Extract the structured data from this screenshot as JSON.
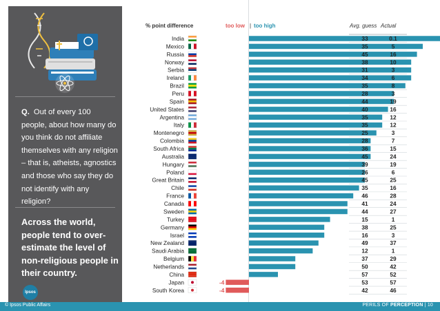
{
  "question": {
    "prefix": "Q.",
    "text": "Out of every 100 people, about how many do you think do not affiliate themselves with any religion – that is, atheists, agnostics and those who say they do not identify with any religion?"
  },
  "takeaway": "Across the world, people tend to over-estimate the level of non-religious people in their country.",
  "logo_text": "Ipsos",
  "footer": {
    "left": "© Ipsos Public Affairs",
    "right_prefix": "PERILS OF ",
    "right_bold": "PERCEPTION",
    "separator": "|",
    "page": "10"
  },
  "colors": {
    "positive": "#2a93b0",
    "negative": "#e05a5a",
    "sidebar": "#58585a",
    "footer": "#2a93b0"
  },
  "chart_data": {
    "type": "bar",
    "header_label": "% point difference",
    "legend_low": "too low",
    "legend_sep": "|",
    "legend_high": "too high",
    "col_avg": "Avg. guess",
    "col_actual": "Actual",
    "xlim": [
      -5,
      35
    ],
    "rows": [
      {
        "country": "India",
        "diff": "+33",
        "value": 33,
        "avg": "33",
        "actual": "0.1",
        "flag": [
          "#ff9933",
          "#ffffff",
          "#138808"
        ]
      },
      {
        "country": "Mexico",
        "diff": "+30",
        "value": 30,
        "avg": "35",
        "actual": "5",
        "flag": [
          "#006847",
          "#ffffff",
          "#ce1126"
        ],
        "vertical": true
      },
      {
        "country": "Russia",
        "diff": "+29",
        "value": 29,
        "avg": "45",
        "actual": "16",
        "flag": [
          "#ffffff",
          "#0039a6",
          "#d52b1e"
        ]
      },
      {
        "country": "Norway",
        "diff": "+28",
        "value": 28,
        "avg": "38",
        "actual": "10",
        "flag": [
          "#ba0c2f",
          "#ffffff",
          "#00205b"
        ]
      },
      {
        "country": "Serbia",
        "diff": "+28",
        "value": 28,
        "avg": "31",
        "actual": "3",
        "flag": [
          "#c6363c",
          "#0c4076",
          "#ffffff"
        ]
      },
      {
        "country": "Ireland",
        "diff": "+28",
        "value": 28,
        "avg": "34",
        "actual": "6",
        "flag": [
          "#169b62",
          "#ffffff",
          "#ff883e"
        ],
        "vertical": true
      },
      {
        "country": "Brazil",
        "diff": "+27",
        "value": 27,
        "avg": "35",
        "actual": "8",
        "flag": [
          "#009c3b",
          "#ffdf00",
          "#009c3b"
        ]
      },
      {
        "country": "Peru",
        "diff": "+25",
        "value": 25,
        "avg": "28",
        "actual": "3",
        "flag": [
          "#d91023",
          "#ffffff",
          "#d91023"
        ],
        "vertical": true
      },
      {
        "country": "Spain",
        "diff": "+25",
        "value": 25,
        "avg": "44",
        "actual": "19",
        "flag": [
          "#aa151b",
          "#f1bf00",
          "#aa151b"
        ]
      },
      {
        "country": "United States",
        "diff": "+24",
        "value": 24,
        "avg": "40",
        "actual": "16",
        "flag": [
          "#b22234",
          "#ffffff",
          "#3c3b6e"
        ]
      },
      {
        "country": "Argentina",
        "diff": "+23",
        "value": 23,
        "avg": "35",
        "actual": "12",
        "flag": [
          "#74acdf",
          "#ffffff",
          "#74acdf"
        ]
      },
      {
        "country": "Italy",
        "diff": "+23",
        "value": 23,
        "avg": "35",
        "actual": "12",
        "flag": [
          "#009246",
          "#ffffff",
          "#ce2b37"
        ],
        "vertical": true
      },
      {
        "country": "Montenegro",
        "diff": "+22",
        "value": 22,
        "avg": "25",
        "actual": "3",
        "flag": [
          "#d3ae3b",
          "#c40308",
          "#d3ae3b"
        ]
      },
      {
        "country": "Colombia",
        "diff": "+21",
        "value": 21,
        "avg": "28",
        "actual": "7",
        "flag": [
          "#fcd116",
          "#003893",
          "#ce1126"
        ]
      },
      {
        "country": "South Africa",
        "diff": "+21",
        "value": 21,
        "avg": "36",
        "actual": "15",
        "flag": [
          "#de3831",
          "#007a4d",
          "#002395"
        ]
      },
      {
        "country": "Australia",
        "diff": "+21",
        "value": 21,
        "avg": "45",
        "actual": "24",
        "flag": [
          "#012169",
          "#012169",
          "#012169"
        ]
      },
      {
        "country": "Hungary",
        "diff": "+20",
        "value": 20,
        "avg": "39",
        "actual": "19",
        "flag": [
          "#ce2939",
          "#ffffff",
          "#477050"
        ]
      },
      {
        "country": "Poland",
        "diff": "+20",
        "value": 20,
        "avg": "26",
        "actual": "6",
        "flag": [
          "#ffffff",
          "#ffffff",
          "#dc143c"
        ]
      },
      {
        "country": "Great Britain",
        "diff": "+20",
        "value": 20,
        "avg": "45",
        "actual": "25",
        "flag": [
          "#012169",
          "#ffffff",
          "#c8102e"
        ]
      },
      {
        "country": "Chile",
        "diff": "+19",
        "value": 19,
        "avg": "35",
        "actual": "16",
        "flag": [
          "#0039a6",
          "#ffffff",
          "#d52b1e"
        ]
      },
      {
        "country": "France",
        "diff": "+18",
        "value": 18,
        "avg": "46",
        "actual": "28",
        "flag": [
          "#0055a4",
          "#ffffff",
          "#ef4135"
        ],
        "vertical": true
      },
      {
        "country": "Canada",
        "diff": "+17",
        "value": 17,
        "avg": "41",
        "actual": "24",
        "flag": [
          "#ff0000",
          "#ffffff",
          "#ff0000"
        ],
        "vertical": true
      },
      {
        "country": "Sweden",
        "diff": "+17",
        "value": 17,
        "avg": "44",
        "actual": "27",
        "flag": [
          "#006aa7",
          "#fecc00",
          "#006aa7"
        ]
      },
      {
        "country": "Turkey",
        "diff": "+14",
        "value": 14,
        "avg": "15",
        "actual": "1",
        "flag": [
          "#e30a17",
          "#e30a17",
          "#e30a17"
        ]
      },
      {
        "country": "Germany",
        "diff": "+13",
        "value": 13,
        "avg": "38",
        "actual": "25",
        "flag": [
          "#000000",
          "#dd0000",
          "#ffce00"
        ]
      },
      {
        "country": "Israel",
        "diff": "+13",
        "value": 13,
        "avg": "16",
        "actual": "3",
        "flag": [
          "#0038b8",
          "#ffffff",
          "#0038b8"
        ]
      },
      {
        "country": "New Zealand",
        "diff": "+12",
        "value": 12,
        "avg": "49",
        "actual": "37",
        "flag": [
          "#012169",
          "#012169",
          "#012169"
        ]
      },
      {
        "country": "Saudi Arabia",
        "diff": "+11",
        "value": 11,
        "avg": "12",
        "actual": "1",
        "flag": [
          "#006c35",
          "#006c35",
          "#006c35"
        ]
      },
      {
        "country": "Belgium",
        "diff": "+8",
        "value": 8,
        "avg": "37",
        "actual": "29",
        "flag": [
          "#000000",
          "#fae042",
          "#ed2939"
        ],
        "vertical": true
      },
      {
        "country": "Netherlands",
        "diff": "+8",
        "value": 8,
        "avg": "50",
        "actual": "42",
        "flag": [
          "#ae1c28",
          "#ffffff",
          "#21468b"
        ]
      },
      {
        "country": "China",
        "diff": "+5",
        "value": 5,
        "avg": "57",
        "actual": "52",
        "flag": [
          "#de2910",
          "#de2910",
          "#de2910"
        ]
      },
      {
        "country": "Japan",
        "diff": "-4",
        "value": -4,
        "avg": "53",
        "actual": "57",
        "flag": [
          "#ffffff",
          "#ffffff",
          "#ffffff"
        ]
      },
      {
        "country": "South Korea",
        "diff": "-4",
        "value": -4,
        "avg": "42",
        "actual": "46",
        "flag": [
          "#ffffff",
          "#ffffff",
          "#ffffff"
        ]
      }
    ]
  }
}
